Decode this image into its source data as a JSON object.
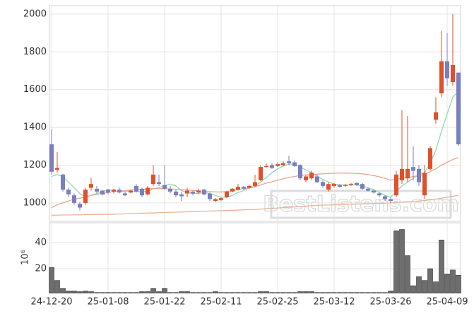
{
  "chart_data": {
    "type": "candlestick",
    "watermark": "BestListens.com",
    "grid": true,
    "up_color": "#e0502a",
    "down_color": "#7a7fc0",
    "categories": [
      "24-12-20",
      null,
      null,
      null,
      null,
      null,
      null,
      null,
      null,
      null,
      "25-01-08",
      null,
      null,
      null,
      null,
      null,
      null,
      null,
      null,
      null,
      "25-01-22",
      null,
      null,
      null,
      null,
      null,
      null,
      null,
      null,
      null,
      "25-02-11",
      null,
      null,
      null,
      null,
      null,
      null,
      null,
      null,
      null,
      "25-02-25",
      null,
      null,
      null,
      null,
      null,
      null,
      null,
      null,
      null,
      "25-03-12",
      null,
      null,
      null,
      null,
      null,
      null,
      null,
      null,
      null,
      "25-03-26",
      null,
      null,
      null,
      null,
      null,
      null,
      null,
      null,
      null,
      "25-04-09",
      null,
      null
    ],
    "open": [
      1310,
      1175,
      1150,
      1070,
      1040,
      995,
      1000,
      1080,
      1075,
      1065,
      1070,
      1060,
      1070,
      1050,
      1055,
      1090,
      1075,
      1045,
      1100,
      1110,
      1095,
      1075,
      1060,
      1045,
      1050,
      1060,
      1055,
      1070,
      1050,
      1010,
      1015,
      1030,
      1060,
      1070,
      1085,
      1080,
      1090,
      1120,
      1190,
      1200,
      1195,
      1200,
      1220,
      1215,
      1200,
      1120,
      1130,
      1140,
      1110,
      1070,
      1090,
      1095,
      1090,
      1095,
      1105,
      1100,
      1075,
      1065,
      1050,
      1035,
      1020,
      1040,
      1120,
      1130,
      1190,
      1180,
      1040,
      1180,
      1440,
      1580,
      1750,
      1640,
      1690
    ],
    "high": [
      1390,
      1270,
      1155,
      1080,
      1050,
      1005,
      1080,
      1130,
      1090,
      1070,
      1075,
      1075,
      1080,
      1060,
      1070,
      1100,
      1080,
      1090,
      1200,
      1150,
      1200,
      1090,
      1070,
      1060,
      1080,
      1065,
      1075,
      1075,
      1055,
      1025,
      1030,
      1065,
      1080,
      1100,
      1090,
      1095,
      1150,
      1200,
      1210,
      1210,
      1215,
      1220,
      1250,
      1225,
      1205,
      1150,
      1170,
      1150,
      1120,
      1110,
      1105,
      1100,
      1100,
      1105,
      1110,
      1105,
      1080,
      1070,
      1055,
      1040,
      1030,
      1170,
      1490,
      1460,
      1300,
      1200,
      1200,
      1300,
      1560,
      1910,
      1900,
      2000,
      1690
    ],
    "low": [
      1150,
      1160,
      1060,
      1030,
      990,
      960,
      990,
      1065,
      1050,
      1040,
      1045,
      1050,
      1050,
      1035,
      1050,
      1055,
      1030,
      1040,
      1090,
      1090,
      1070,
      1050,
      1030,
      1010,
      1030,
      1040,
      1045,
      1040,
      1010,
      1005,
      1010,
      1025,
      1055,
      1065,
      1070,
      1075,
      1085,
      1115,
      1185,
      1180,
      1190,
      1195,
      1200,
      1190,
      1120,
      1110,
      1120,
      1105,
      1080,
      1060,
      1080,
      1080,
      1085,
      1090,
      1090,
      1070,
      1060,
      1050,
      1030,
      1010,
      1000,
      1030,
      1100,
      1110,
      1120,
      1090,
      1020,
      1170,
      1420,
      1560,
      1620,
      1620,
      1300
    ],
    "close": [
      1165,
      1185,
      1070,
      1045,
      1000,
      975,
      1070,
      1100,
      1060,
      1045,
      1055,
      1070,
      1055,
      1040,
      1065,
      1060,
      1040,
      1080,
      1150,
      1100,
      1075,
      1060,
      1040,
      1035,
      1065,
      1050,
      1065,
      1045,
      1020,
      1020,
      1025,
      1060,
      1075,
      1085,
      1075,
      1090,
      1110,
      1190,
      1195,
      1185,
      1205,
      1210,
      1210,
      1195,
      1130,
      1140,
      1160,
      1110,
      1090,
      1100,
      1100,
      1085,
      1095,
      1100,
      1095,
      1075,
      1065,
      1055,
      1040,
      1020,
      1010,
      1150,
      1180,
      1180,
      1170,
      1110,
      1160,
      1290,
      1480,
      1750,
      1660,
      1730,
      1310
    ],
    "ylim": [
      906,
      2037
    ],
    "yticks": [
      1000,
      1200,
      1400,
      1600,
      1800,
      2000
    ],
    "lines": [
      {
        "color": "#8fd8b8",
        "values": [
          1140,
          1150,
          1140,
          1110,
          1080,
          1050,
          1030,
          1040,
          1050,
          1060,
          1070,
          1065,
          1060,
          1060,
          1060,
          1060,
          1060,
          1060,
          1075,
          1080,
          1090,
          1100,
          1090,
          1065,
          1055,
          1050,
          1050,
          1055,
          1050,
          1040,
          1030,
          1030,
          1040,
          1055,
          1065,
          1080,
          1090,
          1110,
          1135,
          1160,
          1180,
          1195,
          1205,
          1205,
          1190,
          1175,
          1160,
          1140,
          1125,
          1110,
          1100,
          1095,
          1095,
          1095,
          1095,
          1090,
          1080,
          1070,
          1055,
          1040,
          1030,
          1060,
          1090,
          1110,
          1130,
          1150,
          1160,
          1210,
          1280,
          1380,
          1470,
          1560,
          1590
        ]
      },
      {
        "color": "#eaa590",
        "values": [
          975,
          990,
          1000,
          1010,
          1020,
          1025,
          1030,
          1040,
          1045,
          1050,
          1055,
          1060,
          1062,
          1065,
          1068,
          1070,
          1072,
          1074,
          1076,
          1076,
          1075,
          1074,
          1072,
          1070,
          1068,
          1066,
          1064,
          1062,
          1060,
          1058,
          1058,
          1060,
          1065,
          1070,
          1075,
          1080,
          1085,
          1095,
          1105,
          1112,
          1120,
          1128,
          1135,
          1140,
          1145,
          1148,
          1150,
          1152,
          1154,
          1156,
          1157,
          1158,
          1158,
          1157,
          1156,
          1154,
          1150,
          1145,
          1138,
          1130,
          1120,
          1125,
          1130,
          1135,
          1140,
          1145,
          1150,
          1165,
          1180,
          1200,
          1215,
          1230,
          1240
        ]
      },
      {
        "color": "#e8b49c",
        "values": [
          935,
          935,
          936,
          936,
          937,
          937,
          938,
          938,
          939,
          939,
          940,
          940,
          941,
          942,
          943,
          944,
          945,
          946,
          947,
          948,
          949,
          950,
          951,
          952,
          953,
          954,
          955,
          956,
          957,
          958,
          959,
          960,
          961,
          962,
          963,
          964,
          965,
          967,
          969,
          971,
          973,
          975,
          977,
          979,
          981,
          983,
          985,
          987,
          988,
          989,
          990,
          991,
          992,
          993,
          994,
          995,
          996,
          997,
          998,
          999,
          1000,
          1002,
          1004,
          1006,
          1008,
          1010,
          1013,
          1016,
          1020,
          1025,
          1030,
          1035,
          1040
        ]
      }
    ],
    "volume": {
      "label": "10⁶",
      "color": "#6e6e6e",
      "ylim": [
        1.6,
        54.6
      ],
      "yticks": [
        20,
        40
      ],
      "values": [
        21,
        11,
        5,
        3,
        3,
        2.5,
        3,
        2.5,
        1.8,
        1.8,
        1.8,
        1.8,
        1.8,
        1.8,
        1.8,
        1.8,
        2.5,
        2.5,
        5,
        2.5,
        5,
        1.8,
        1.8,
        2.5,
        2.5,
        1.8,
        1.8,
        1.8,
        1.8,
        2.5,
        1.8,
        1.8,
        1.8,
        1.8,
        1.8,
        1.8,
        1.8,
        2.5,
        2.5,
        1.8,
        1.8,
        1.8,
        1.8,
        1.8,
        2.5,
        2.5,
        2.5,
        1.8,
        1.8,
        1.8,
        1.8,
        1.8,
        1.8,
        1.8,
        1.8,
        1.8,
        1.8,
        1.8,
        1.8,
        1.8,
        3,
        49,
        50,
        30,
        7,
        14,
        11,
        20,
        10,
        42,
        16,
        19,
        15
      ]
    }
  }
}
